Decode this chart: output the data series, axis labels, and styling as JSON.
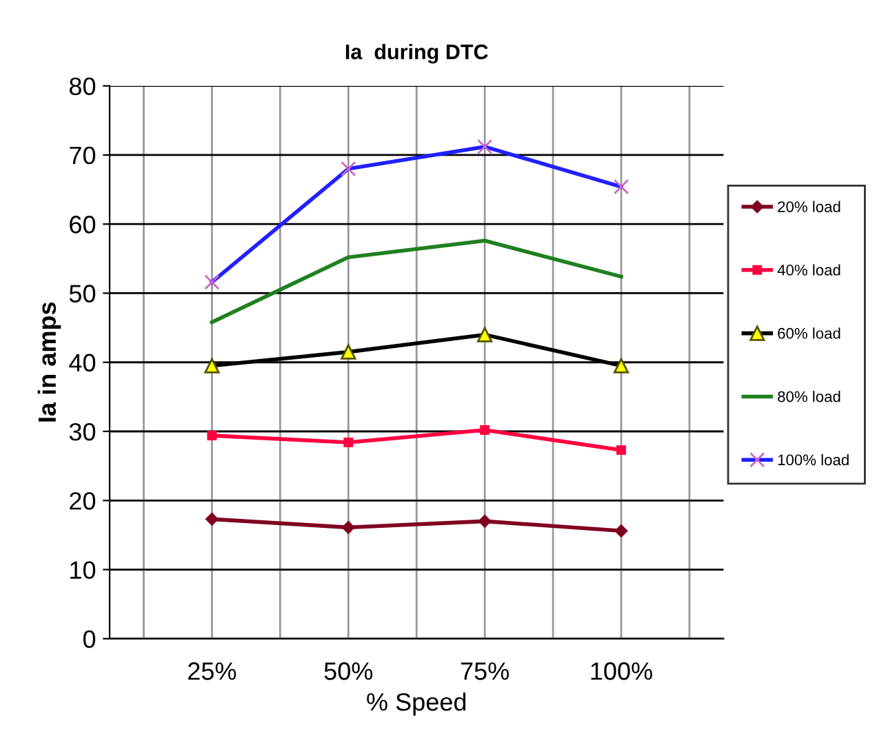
{
  "chart_data": {
    "type": "line",
    "title": "Ia  during DTC",
    "xlabel": "% Speed",
    "ylabel": "Ia in amps",
    "categories": [
      "25%",
      "50%",
      "75%",
      "100%"
    ],
    "series": [
      {
        "name": "20% load",
        "color": "#800020",
        "marker": "diamond",
        "values": [
          17.3,
          16.1,
          17.0,
          15.6
        ]
      },
      {
        "name": "40% load",
        "color": "#ff0040",
        "marker": "square",
        "values": [
          29.4,
          28.4,
          30.2,
          27.3
        ]
      },
      {
        "name": "60% load",
        "color": "#000000",
        "marker": "triangle",
        "values": [
          39.5,
          41.5,
          44.0,
          39.5
        ]
      },
      {
        "name": "80% load",
        "color": "#208020",
        "marker": "none",
        "values": [
          45.8,
          55.2,
          57.6,
          52.4
        ]
      },
      {
        "name": "100% load",
        "color": "#2020ff",
        "marker": "cross",
        "values": [
          51.6,
          68.0,
          71.2,
          65.4
        ]
      }
    ],
    "ylim": [
      0,
      80
    ],
    "yticks": [
      0,
      10,
      20,
      30,
      40,
      50,
      60,
      70,
      80
    ],
    "grid": true,
    "legend": "right"
  }
}
